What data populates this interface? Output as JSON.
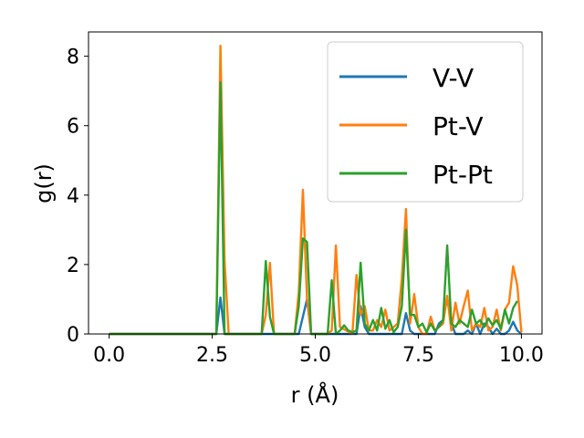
{
  "chart_data": {
    "type": "line",
    "title": "",
    "xlabel": "r (Å)",
    "ylabel": "g(r)",
    "xlim": [
      -0.5,
      10.5
    ],
    "ylim": [
      0,
      8.7
    ],
    "xticks": [
      0.0,
      2.5,
      5.0,
      7.5,
      10.0
    ],
    "xtick_labels": [
      "0.0",
      "2.5",
      "5.0",
      "7.5",
      "10.0"
    ],
    "yticks": [
      0,
      2,
      4,
      6,
      8
    ],
    "ytick_labels": [
      "0",
      "2",
      "4",
      "6",
      "8"
    ],
    "grid": false,
    "legend_position": "top-right",
    "series": [
      {
        "name": "V-V",
        "color": "#1f77b4",
        "x": [
          0.0,
          2.6,
          2.7,
          2.8,
          2.9,
          3.0,
          4.5,
          4.6,
          4.7,
          4.8,
          4.9,
          6.0,
          6.1,
          6.2,
          6.3,
          7.1,
          7.2,
          7.3,
          7.4,
          7.9,
          8.0,
          8.1,
          8.2,
          8.3,
          8.4,
          8.6,
          8.7,
          8.8,
          8.9,
          9.0,
          9.1,
          9.2,
          9.3,
          9.4,
          9.5,
          9.6,
          9.7,
          9.8,
          9.9,
          10.0
        ],
        "y": [
          0,
          0,
          1.05,
          0,
          0,
          0,
          0,
          0,
          0.5,
          1.0,
          0,
          0,
          0.8,
          0.2,
          0,
          0,
          0.6,
          0.1,
          0,
          0,
          0.3,
          0.4,
          1.05,
          0.3,
          0,
          0,
          0.1,
          0,
          0.3,
          0,
          0.3,
          0.2,
          0,
          0.15,
          0,
          0,
          0.1,
          0.35,
          0.1,
          0
        ]
      },
      {
        "name": "Pt-V",
        "color": "#ff7f0e",
        "x": [
          0.0,
          2.6,
          2.7,
          2.8,
          2.9,
          3.7,
          3.8,
          3.9,
          4.0,
          4.5,
          4.6,
          4.7,
          4.8,
          4.9,
          5.3,
          5.4,
          5.5,
          5.6,
          5.9,
          6.0,
          6.1,
          6.2,
          6.3,
          6.4,
          6.5,
          6.6,
          6.7,
          6.8,
          6.9,
          7.0,
          7.1,
          7.2,
          7.3,
          7.4,
          7.5,
          7.6,
          7.7,
          7.8,
          7.9,
          8.0,
          8.1,
          8.2,
          8.3,
          8.4,
          8.5,
          8.6,
          8.7,
          8.8,
          8.9,
          9.0,
          9.1,
          9.2,
          9.3,
          9.4,
          9.5,
          9.6,
          9.7,
          9.8,
          9.9,
          10.0
        ],
        "y": [
          0,
          0,
          8.3,
          2.1,
          0,
          0,
          0.55,
          2.05,
          0,
          0,
          1.2,
          4.15,
          1.0,
          0,
          0,
          0.1,
          2.55,
          0.2,
          0,
          1.7,
          0.55,
          0.8,
          0.1,
          0.1,
          0.4,
          0.2,
          0.7,
          0.1,
          0.2,
          0.3,
          1.6,
          3.6,
          0.3,
          1.15,
          0.2,
          0,
          0,
          0.5,
          0.1,
          0.2,
          0.3,
          1.1,
          0.1,
          0.9,
          0.3,
          0.8,
          1.25,
          0.1,
          0.3,
          0.2,
          0.75,
          0.1,
          0.2,
          0.7,
          0.1,
          0.7,
          0.9,
          1.95,
          1.4,
          0.05
        ]
      },
      {
        "name": "Pt-Pt",
        "color": "#2ca02c",
        "x": [
          0.0,
          2.6,
          2.7,
          2.8,
          2.9,
          3.7,
          3.8,
          3.9,
          4.0,
          4.5,
          4.6,
          4.7,
          4.8,
          4.9,
          5.3,
          5.4,
          5.5,
          5.6,
          5.7,
          5.8,
          5.9,
          6.0,
          6.1,
          6.2,
          6.3,
          6.4,
          6.5,
          6.6,
          6.7,
          6.8,
          6.9,
          7.0,
          7.1,
          7.2,
          7.3,
          7.4,
          7.5,
          7.6,
          7.7,
          7.8,
          7.9,
          8.0,
          8.1,
          8.2,
          8.3,
          8.4,
          8.5,
          8.6,
          8.7,
          8.8,
          8.9,
          9.0,
          9.1,
          9.2,
          9.3,
          9.4,
          9.5,
          9.6,
          9.7,
          9.8,
          9.9
        ],
        "y": [
          0,
          0,
          7.25,
          0,
          0,
          0,
          2.1,
          0.5,
          0,
          0,
          0.8,
          2.75,
          2.65,
          0,
          0,
          1.55,
          0,
          0.1,
          0.25,
          0.1,
          0.05,
          0.1,
          2.05,
          0.3,
          0.1,
          0.4,
          0.1,
          0.75,
          0.15,
          0.4,
          0.05,
          0.2,
          0.8,
          3.0,
          0.55,
          0.55,
          0.2,
          0.3,
          0.05,
          0.3,
          0.1,
          0.2,
          0.4,
          2.55,
          0.3,
          0.2,
          0.4,
          0.3,
          0.2,
          0.7,
          0.3,
          0.4,
          0.2,
          0.45,
          0.25,
          0.4,
          0.15,
          0.7,
          0.3,
          0.75,
          0.95
        ]
      }
    ]
  }
}
